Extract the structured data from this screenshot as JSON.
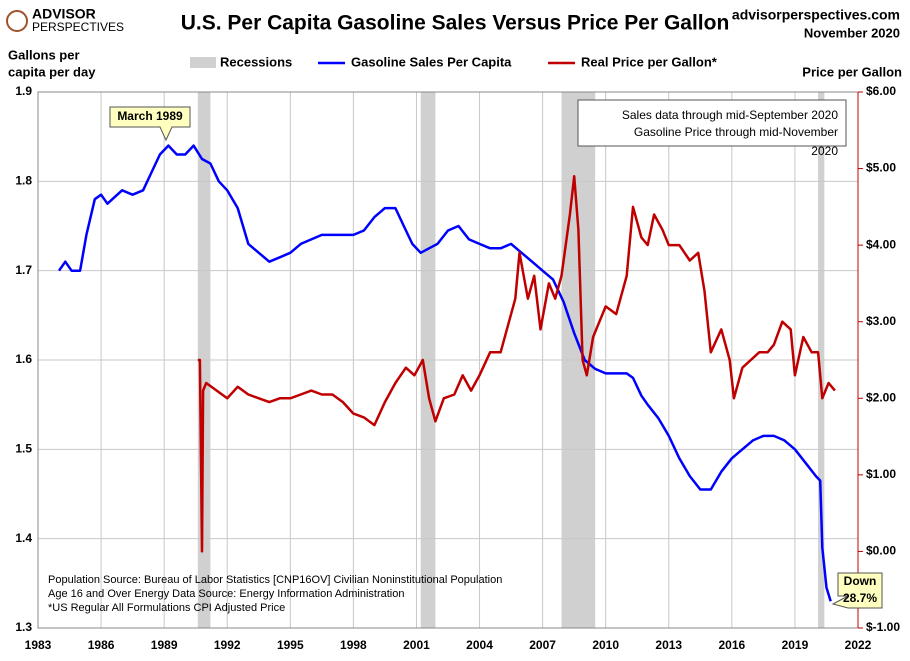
{
  "logo": {
    "line1": "ADVISOR",
    "line2": "PERSPECTIVES"
  },
  "source": "advisorperspectives.com",
  "date": "November 2020",
  "chart_data": {
    "type": "line",
    "title": "U.S. Per Capita Gasoline Sales Versus Price Per Gallon",
    "y_label": [
      "Gallons per",
      "capita per day"
    ],
    "y2_label": "Price per Gallon",
    "xlim": [
      1983,
      2022
    ],
    "xticks": [
      1983,
      1986,
      1989,
      1992,
      1995,
      1998,
      2001,
      2004,
      2007,
      2010,
      2013,
      2016,
      2019,
      2022
    ],
    "ylim": [
      1.3,
      1.9
    ],
    "yticks": [
      1.3,
      1.4,
      1.5,
      1.6,
      1.7,
      1.8,
      1.9
    ],
    "y2lim": [
      -1,
      6
    ],
    "y2ticks": [
      {
        "value": -1,
        "label": "$-1.00"
      },
      {
        "value": 0,
        "label": "$0.00"
      },
      {
        "value": 1,
        "label": "$1.00"
      },
      {
        "value": 2,
        "label": "$2.00"
      },
      {
        "value": 3,
        "label": "$3.00"
      },
      {
        "value": 4,
        "label": "$4.00"
      },
      {
        "value": 5,
        "label": "$5.00"
      },
      {
        "value": 6,
        "label": "$6.00"
      }
    ],
    "grid": true,
    "recessions_label": "Recessions",
    "recessions_color": "#d0d0d0",
    "recessions": [
      [
        1990.6,
        1991.2
      ],
      [
        2001.2,
        2001.9
      ],
      [
        2007.9,
        2009.5
      ],
      [
        2020.1,
        2020.4
      ]
    ],
    "series": [
      {
        "name": "Gasoline Sales Per Capita",
        "color": "#0000ff",
        "axis": "y",
        "x": [
          1984.0,
          1984.3,
          1984.6,
          1985.0,
          1985.3,
          1985.7,
          1986.0,
          1986.3,
          1987.0,
          1987.5,
          1988.0,
          1988.4,
          1988.8,
          1989.2,
          1989.6,
          1990.0,
          1990.4,
          1990.8,
          1991.2,
          1991.6,
          1992.0,
          1992.5,
          1993.0,
          1993.5,
          1994.0,
          1994.5,
          1995.0,
          1995.5,
          1996.0,
          1996.5,
          1997.0,
          1997.5,
          1998.0,
          1998.5,
          1999.0,
          1999.5,
          2000.0,
          2000.4,
          2000.8,
          2001.2,
          2001.6,
          2002.0,
          2002.5,
          2003.0,
          2003.5,
          2004.0,
          2004.5,
          2005.0,
          2005.5,
          2006.0,
          2006.5,
          2007.0,
          2007.5,
          2008.0,
          2008.5,
          2009.0,
          2009.5,
          2010.0,
          2010.5,
          2011.0,
          2011.3,
          2011.7,
          2012.0,
          2012.5,
          2013.0,
          2013.5,
          2014.0,
          2014.5,
          2015.0,
          2015.5,
          2016.0,
          2016.5,
          2017.0,
          2017.5,
          2018.0,
          2018.5,
          2019.0,
          2019.5,
          2020.0,
          2020.2,
          2020.3,
          2020.5,
          2020.7
        ],
        "values": [
          1.7,
          1.71,
          1.7,
          1.7,
          1.74,
          1.78,
          1.785,
          1.775,
          1.79,
          1.785,
          1.79,
          1.81,
          1.83,
          1.84,
          1.83,
          1.83,
          1.84,
          1.825,
          1.82,
          1.8,
          1.79,
          1.77,
          1.73,
          1.72,
          1.71,
          1.715,
          1.72,
          1.73,
          1.735,
          1.74,
          1.74,
          1.74,
          1.74,
          1.745,
          1.76,
          1.77,
          1.77,
          1.75,
          1.73,
          1.72,
          1.725,
          1.73,
          1.745,
          1.75,
          1.735,
          1.73,
          1.725,
          1.725,
          1.73,
          1.72,
          1.71,
          1.7,
          1.69,
          1.665,
          1.63,
          1.6,
          1.59,
          1.585,
          1.585,
          1.585,
          1.58,
          1.56,
          1.55,
          1.535,
          1.515,
          1.49,
          1.47,
          1.455,
          1.455,
          1.475,
          1.49,
          1.5,
          1.51,
          1.515,
          1.515,
          1.51,
          1.5,
          1.485,
          1.47,
          1.465,
          1.39,
          1.345,
          1.33
        ]
      },
      {
        "name": "Real Price per Gallon*",
        "color": "#c00000",
        "axis": "y2",
        "x": [
          1990.6,
          1990.7,
          1990.8,
          1990.85,
          1991.0,
          1991.5,
          1992.0,
          1992.5,
          1993.0,
          1993.5,
          1994.0,
          1994.5,
          1995.0,
          1995.5,
          1996.0,
          1996.5,
          1997.0,
          1997.5,
          1998.0,
          1998.5,
          1999.0,
          1999.5,
          2000.0,
          2000.5,
          2000.9,
          2001.3,
          2001.6,
          2001.9,
          2002.3,
          2002.8,
          2003.2,
          2003.6,
          2004.0,
          2004.5,
          2005.0,
          2005.7,
          2005.9,
          2006.3,
          2006.6,
          2006.9,
          2007.3,
          2007.6,
          2007.9,
          2008.3,
          2008.5,
          2008.7,
          2008.9,
          2009.1,
          2009.4,
          2009.7,
          2010.0,
          2010.5,
          2011.0,
          2011.3,
          2011.7,
          2012.0,
          2012.3,
          2012.7,
          2013.0,
          2013.5,
          2014.0,
          2014.4,
          2014.7,
          2015.0,
          2015.5,
          2015.9,
          2016.1,
          2016.5,
          2016.9,
          2017.3,
          2017.7,
          2018.0,
          2018.4,
          2018.8,
          2019.0,
          2019.4,
          2019.8,
          2020.1,
          2020.3,
          2020.6,
          2020.9
        ],
        "values": [
          2.5,
          2.5,
          0.0,
          2.1,
          2.2,
          2.1,
          2.0,
          2.15,
          2.05,
          2.0,
          1.95,
          2.0,
          2.0,
          2.05,
          2.1,
          2.05,
          2.05,
          1.95,
          1.8,
          1.75,
          1.65,
          1.95,
          2.2,
          2.4,
          2.3,
          2.5,
          2.0,
          1.7,
          2.0,
          2.05,
          2.3,
          2.1,
          2.3,
          2.6,
          2.6,
          3.3,
          3.9,
          3.3,
          3.6,
          2.9,
          3.5,
          3.3,
          3.6,
          4.4,
          4.9,
          4.2,
          2.5,
          2.3,
          2.8,
          3.0,
          3.2,
          3.1,
          3.6,
          4.5,
          4.1,
          4.0,
          4.4,
          4.2,
          4.0,
          4.0,
          3.8,
          3.9,
          3.4,
          2.6,
          2.9,
          2.5,
          2.0,
          2.4,
          2.5,
          2.6,
          2.6,
          2.7,
          3.0,
          2.9,
          2.3,
          2.8,
          2.6,
          2.6,
          2.0,
          2.2,
          2.1
        ]
      }
    ],
    "annotations": {
      "peak": "March 1989",
      "down": [
        "Down",
        "28.7%"
      ],
      "note": [
        "Sales data through mid-September 2020",
        "Gasoline Price through mid-November",
        "2020"
      ]
    },
    "footnotes": [
      "Population Source: Bureau of Labor Statistics [CNP16OV] Civilian Noninstitutional Population",
      "Age 16 and Over Energy Data Source: Energy Information Administration",
      "*US Regular All Formulations CPI Adjusted Price"
    ]
  }
}
